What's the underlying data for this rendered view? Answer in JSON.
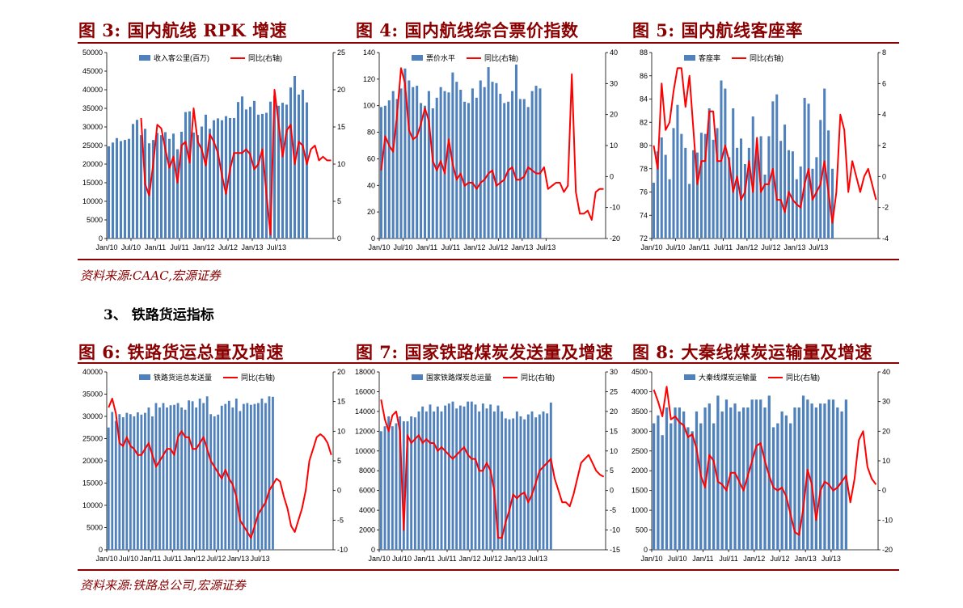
{
  "row1": {
    "fig3_title": "图 3:  国内航线 RPK 增速",
    "fig4_title": "图 4:  国内航线综合票价指数",
    "fig5_title": "图 5:  国内航线客座率",
    "source": "资料来源:CAAC,宏源证券"
  },
  "section": {
    "title": "3、 铁路货运指标"
  },
  "row2": {
    "fig6_title": "图 6:  铁路货运总量及增速",
    "fig7_title": "图 7:  国家铁路煤炭发送量及增速",
    "fig8_title": "图 8:  大秦线煤炭运输量及增速",
    "source": "资料来源:铁路总公司,宏源证券"
  },
  "colors": {
    "bar": "#4f81bd",
    "line": "#ff0000",
    "title": "#8b0000"
  },
  "chart_data": [
    {
      "id": "fig3",
      "type": "bar+line",
      "title": "图 3:  国内航线 RPK 增速",
      "x_ticks": [
        "Jan/10",
        "Jul/10",
        "Jan/11",
        "Jul/11",
        "Jan/12",
        "Jul/12",
        "Jan/13",
        "Jul/13"
      ],
      "yleft": {
        "min": 0,
        "max": 50000,
        "step": 5000
      },
      "yright": {
        "min": 0,
        "max": 25,
        "step": 5
      },
      "series": [
        {
          "name": "收入客公里(百万)",
          "axis": "left",
          "kind": "bar",
          "values": [
            24800,
            25800,
            27000,
            26200,
            26500,
            26800,
            30800,
            31900,
            27800,
            29500,
            25600,
            26500,
            28400,
            27800,
            28600,
            26800,
            28200,
            24000,
            28700,
            34000,
            34200,
            28500,
            27800,
            30100,
            33300,
            29500,
            31800,
            32300,
            31800,
            32900,
            32400,
            32400,
            36700,
            38200,
            34700,
            35400,
            37000,
            33300,
            33500,
            33800,
            36800,
            38400,
            35700,
            36500,
            36000,
            40600,
            43700,
            38700,
            40000,
            36600
          ]
        },
        {
          "name": "同比(右轴)",
          "axis": "right",
          "kind": "line",
          "start_index": 8,
          "values": [
            16.2,
            7.3,
            5.8,
            10.0,
            15.3,
            14.8,
            12.0,
            9.5,
            11.0,
            7.5,
            12.5,
            13.0,
            10.2,
            17.5,
            13.0,
            12.0,
            9.8,
            14.0,
            13.0,
            11.5,
            8.5,
            6.0,
            9.3,
            11.5,
            11.5,
            11.5,
            12.0,
            11.3,
            9.3,
            10.0,
            12.0,
            6.0,
            0.5,
            20.0,
            15.5,
            11.0,
            14.5,
            15.3,
            10.0,
            13.0,
            12.5,
            10.0,
            12.0,
            12.5,
            10.5,
            11.0,
            10.5,
            10.5
          ]
        }
      ]
    },
    {
      "id": "fig4",
      "type": "bar+line",
      "title": "图 4:  国内航线综合票价指数",
      "x_ticks": [
        "Jan/10",
        "Jul/10",
        "Jan/11",
        "Jul/11",
        "Jan/12",
        "Jul/12",
        "Jan/13",
        "Jul/13"
      ],
      "yleft": {
        "min": 0,
        "max": 140,
        "step": 20
      },
      "yright": {
        "min": -20,
        "max": 40,
        "step": 10
      },
      "series": [
        {
          "name": "票价水平",
          "axis": "left",
          "kind": "bar",
          "values": [
            99,
            100,
            104,
            111,
            105,
            113,
            128,
            119,
            114,
            115,
            102,
            100,
            111,
            98,
            106,
            114,
            111,
            110,
            125,
            118,
            112,
            103,
            102,
            113,
            106,
            119,
            114,
            129,
            118,
            117,
            109,
            102,
            103,
            111,
            131,
            105,
            105,
            99,
            111,
            115,
            113
          ]
        },
        {
          "name": "同比(右轴)",
          "axis": "right",
          "kind": "line",
          "values": [
            2,
            13,
            10,
            8,
            20,
            35,
            30,
            15,
            12,
            13,
            17,
            22,
            18,
            5,
            2,
            5,
            1,
            12,
            4,
            -1,
            1,
            -3,
            -2,
            -2,
            -4,
            -2,
            -1,
            1,
            2,
            -3,
            -2,
            -1,
            2,
            3,
            -1,
            -1,
            0,
            3,
            2,
            1,
            1,
            3,
            -4,
            -3,
            -2,
            -2,
            -5,
            -3,
            33,
            -5,
            -12,
            -12,
            -11,
            -14,
            -5,
            -4,
            -4
          ]
        }
      ]
    },
    {
      "id": "fig5",
      "type": "bar+line",
      "title": "图 5:  国内航线客座率",
      "x_ticks": [
        "Jan/10",
        "Jul/10",
        "Jan/11",
        "Jul/11",
        "Jan/12",
        "Jul/12",
        "Jan/13",
        "Jul/13"
      ],
      "yleft": {
        "min": 72,
        "max": 88,
        "step": 2
      },
      "yright": {
        "min": -4,
        "max": 8,
        "step": 2
      },
      "series": [
        {
          "name": "客座率",
          "axis": "left",
          "kind": "bar",
          "values": [
            76.8,
            79.5,
            80.7,
            79.2,
            77.1,
            81.5,
            83.5,
            81.0,
            79.8,
            76.7,
            79.6,
            79.4,
            81.1,
            81.0,
            83.2,
            80.5,
            81.5,
            85.6,
            84.9,
            79.0,
            83.2,
            79.8,
            80.6,
            78.4,
            79.8,
            82.5,
            80.1,
            80.8,
            77.5,
            80.8,
            83.8,
            84.4,
            80.4,
            81.8,
            79.6,
            79.5,
            77.1,
            78.2,
            84.1,
            83.6,
            78.0,
            79.0,
            82.2,
            84.9,
            81.3,
            78.0
          ]
        },
        {
          "name": "同比(右轴)",
          "axis": "right",
          "kind": "line",
          "values": [
            2,
            0.5,
            6,
            3,
            3.5,
            5.5,
            7,
            7,
            4.5,
            6.5,
            3,
            -0.5,
            1,
            1,
            4.2,
            4.2,
            1,
            1,
            2,
            1,
            -1,
            0,
            -1.5,
            -1,
            1,
            -1,
            2.5,
            -1,
            -0.5,
            -0.5,
            0.5,
            -1.5,
            -1.5,
            -2.3,
            -1,
            -1.5,
            -1.8,
            -2,
            -0.5,
            0.5,
            -1.5,
            -1,
            -0.5,
            1,
            -1,
            -3,
            -1,
            4,
            3,
            -1,
            1,
            0,
            -1,
            0,
            0.5,
            -0.5,
            -1.5
          ]
        }
      ]
    },
    {
      "id": "fig6",
      "type": "bar+line",
      "title": "图 6:  铁路货运总量及增速",
      "x_ticks": [
        "Jan/10",
        "Jul/10",
        "Jan/11",
        "Jul/11",
        "Jan/12",
        "Jul/12",
        "Jan/13",
        "Jul/13"
      ],
      "yleft": {
        "min": 0,
        "max": 40000,
        "step": 5000
      },
      "yright": {
        "min": -10,
        "max": 20,
        "step": 5
      },
      "series": [
        {
          "name": "铁路货运总发送量",
          "axis": "left",
          "kind": "bar",
          "values": [
            27500,
            31000,
            29000,
            30500,
            29800,
            30800,
            30500,
            30000,
            30900,
            30400,
            30800,
            32000,
            30000,
            33000,
            32000,
            33000,
            32000,
            32500,
            32600,
            33000,
            32000,
            31500,
            33600,
            33400,
            32000,
            34000,
            33000,
            34500,
            30500,
            30000,
            30400,
            32400,
            32800,
            33500,
            32000,
            34000,
            31200,
            32800,
            33000,
            32600,
            32800,
            33000,
            34000,
            33000,
            34500,
            34400
          ]
        },
        {
          "name": "同比(右轴)",
          "axis": "right",
          "kind": "line",
          "values": [
            14,
            15.5,
            13,
            8,
            7.5,
            9,
            7.5,
            7,
            6,
            6,
            7,
            8,
            6,
            4,
            5,
            6,
            7,
            7,
            6,
            9,
            10,
            9,
            9,
            7,
            7,
            8,
            9,
            7,
            5,
            4,
            3,
            2,
            3.5,
            2,
            1,
            -1,
            -5,
            -6,
            -7,
            -8,
            -6,
            -4,
            -3,
            -2,
            0,
            1,
            2,
            1.5,
            -1,
            -3,
            -6,
            -7,
            -5,
            -3,
            0,
            5,
            7,
            9,
            9.5,
            9,
            8,
            6
          ]
        }
      ]
    },
    {
      "id": "fig7",
      "type": "bar+line",
      "title": "图 7:  国家铁路煤炭发送量及增速",
      "x_ticks": [
        "Jan/10",
        "Jul/10",
        "Jan/11",
        "Jul/11",
        "Jan/12",
        "Jul/12",
        "Jan/13",
        "Jul/13"
      ],
      "yleft": {
        "min": 0,
        "max": 18000,
        "step": 2000
      },
      "yright": {
        "min": -15,
        "max": 30,
        "step": 5
      },
      "series": [
        {
          "name": "国家铁路煤炭总运量",
          "axis": "left",
          "kind": "bar",
          "values": [
            12000,
            12500,
            13500,
            12500,
            12800,
            13500,
            13000,
            13000,
            13500,
            13400,
            14000,
            14500,
            14000,
            14700,
            14000,
            14500,
            14000,
            14600,
            14800,
            15000,
            14300,
            14600,
            14500,
            15000,
            15000,
            14700,
            14000,
            14800,
            14300,
            14700,
            14000,
            14600,
            14000,
            13300,
            13200,
            13300,
            14000,
            13500,
            13200,
            13700,
            14000,
            13400,
            13700,
            14000,
            13800,
            14900
          ]
        },
        {
          "name": "同比(右轴)",
          "axis": "right",
          "kind": "line",
          "values": [
            23,
            18,
            15,
            19,
            20,
            15,
            -10,
            14,
            12,
            13,
            14,
            12,
            13,
            12,
            12,
            10,
            11,
            10,
            9,
            8,
            9,
            10,
            11,
            9,
            8,
            8,
            5,
            5,
            7,
            5,
            0,
            -12,
            -12,
            -8,
            -5,
            -1,
            -2,
            -1,
            -0.5,
            -3,
            -1,
            2,
            5,
            6,
            7,
            8,
            3,
            0,
            -3,
            -3,
            -4,
            -1,
            3,
            7,
            8,
            9,
            7,
            5,
            4,
            3.5
          ]
        }
      ]
    },
    {
      "id": "fig8",
      "type": "bar+line",
      "title": "图 8:  大秦线煤炭运输量及增速",
      "x_ticks": [
        "Jan/10",
        "Jul/10",
        "Jan/11",
        "Jul/11",
        "Jan/12",
        "Jul/12",
        "Jan/13",
        "Jul/13"
      ],
      "yleft": {
        "min": 0,
        "max": 4500,
        "step": 500
      },
      "yright": {
        "min": -20,
        "max": 40,
        "step": 10
      },
      "series": [
        {
          "name": "大秦线煤炭运输量",
          "axis": "left",
          "kind": "bar",
          "values": [
            3200,
            3400,
            2900,
            3600,
            3200,
            3600,
            3600,
            3500,
            3100,
            3000,
            3500,
            3200,
            3600,
            3700,
            3200,
            3900,
            3500,
            3800,
            3600,
            3700,
            3500,
            3600,
            3600,
            3800,
            3800,
            3800,
            3600,
            3900,
            3100,
            3200,
            3500,
            3400,
            3200,
            3600,
            3600,
            3900,
            3800,
            3700,
            3600,
            3700,
            3700,
            3800,
            3800,
            3600,
            3500,
            3800
          ]
        },
        {
          "name": "同比(右轴)",
          "axis": "right",
          "kind": "line",
          "values": [
            34,
            30,
            25,
            35,
            24,
            25,
            23,
            22,
            18,
            19,
            14,
            5,
            1,
            12,
            10,
            3,
            2,
            0,
            6,
            6,
            3,
            0,
            5,
            10,
            15,
            16,
            10,
            5,
            1,
            0,
            1,
            -2,
            -8,
            -14,
            -15,
            -6,
            7,
            2,
            -10,
            0,
            3,
            2,
            0,
            1,
            3,
            5,
            -4,
            4,
            17,
            20,
            8,
            4,
            2
          ]
        }
      ]
    }
  ]
}
